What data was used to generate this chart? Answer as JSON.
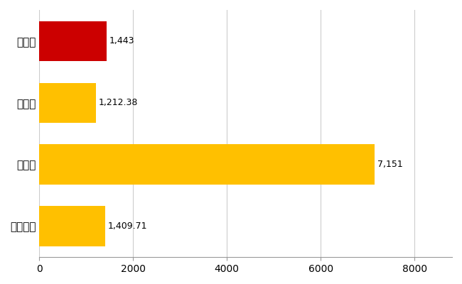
{
  "categories": [
    "全国平均",
    "県最大",
    "県平均",
    "日光市"
  ],
  "values": [
    1409.71,
    7151,
    1212.38,
    1443
  ],
  "bar_colors": [
    "#FFC000",
    "#FFC000",
    "#FFC000",
    "#CC0000"
  ],
  "value_labels": [
    "1,409.71",
    "7,151",
    "1,212.38",
    "1,443"
  ],
  "xlim": [
    0,
    8800
  ],
  "xticks": [
    0,
    2000,
    4000,
    6000,
    8000
  ],
  "xtick_labels": [
    "0",
    "2000",
    "4000",
    "6000",
    "8000"
  ],
  "background_color": "#FFFFFF",
  "grid_color": "#CCCCCC",
  "bar_height": 0.65,
  "label_fontsize": 9,
  "tick_fontsize": 10,
  "ytick_fontsize": 11
}
